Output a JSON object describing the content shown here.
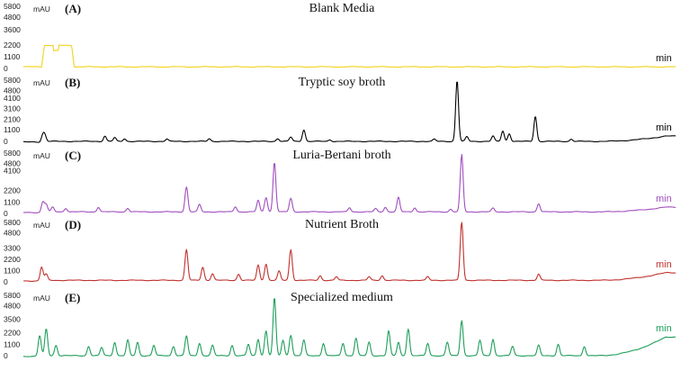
{
  "chart_data": {
    "type": "line",
    "y_ticks": [
      0,
      1100,
      2200,
      3300,
      4800,
      5800
    ],
    "ylim": [
      0,
      5800
    ],
    "panels": [
      {
        "label": "(A)",
        "title": "Blank Media",
        "y_unit": "mAU",
        "x_unit": "min",
        "y_ticks": [
          0,
          1100,
          2200,
          3600,
          4800,
          5800
        ],
        "color": "#f2d21a",
        "baseline": 150,
        "end_level": 150,
        "peaks": [],
        "plateau": [
          {
            "x": 0.028,
            "x2": 0.078,
            "h": 2000
          }
        ]
      },
      {
        "label": "(B)",
        "title": "Tryptic soy broth",
        "y_unit": "mAU",
        "x_unit": "min",
        "y_ticks": [
          0,
          1100,
          2100,
          3100,
          4100,
          4800,
          5800
        ],
        "color": "#000000",
        "baseline": 0,
        "end_level": 500,
        "peaks": [
          {
            "x": 0.03,
            "h": 600
          },
          {
            "x": 0.033,
            "h": 500
          },
          {
            "x": 0.125,
            "h": 500
          },
          {
            "x": 0.14,
            "h": 350
          },
          {
            "x": 0.155,
            "h": 250
          },
          {
            "x": 0.22,
            "h": 220
          },
          {
            "x": 0.285,
            "h": 250
          },
          {
            "x": 0.39,
            "h": 260
          },
          {
            "x": 0.41,
            "h": 400
          },
          {
            "x": 0.43,
            "h": 1100
          },
          {
            "x": 0.47,
            "h": 150
          },
          {
            "x": 0.63,
            "h": 200
          },
          {
            "x": 0.665,
            "h": 5800
          },
          {
            "x": 0.68,
            "h": 450
          },
          {
            "x": 0.72,
            "h": 500
          },
          {
            "x": 0.735,
            "h": 1000
          },
          {
            "x": 0.745,
            "h": 750
          },
          {
            "x": 0.785,
            "h": 2400
          },
          {
            "x": 0.84,
            "h": 220
          }
        ]
      },
      {
        "label": "(C)",
        "title": "Luria-Bertani broth",
        "y_unit": "mAU",
        "x_unit": "min",
        "y_ticks": [
          0,
          1100,
          2200,
          4100,
          4800,
          5800
        ],
        "color": "#a14fbf",
        "baseline": 150,
        "end_level": 600,
        "peaks": [
          {
            "x": 0.03,
            "h": 950
          },
          {
            "x": 0.035,
            "h": 700
          },
          {
            "x": 0.045,
            "h": 450
          },
          {
            "x": 0.065,
            "h": 350
          },
          {
            "x": 0.115,
            "h": 450
          },
          {
            "x": 0.16,
            "h": 350
          },
          {
            "x": 0.25,
            "h": 2400
          },
          {
            "x": 0.27,
            "h": 700
          },
          {
            "x": 0.325,
            "h": 500
          },
          {
            "x": 0.36,
            "h": 1100
          },
          {
            "x": 0.372,
            "h": 1400
          },
          {
            "x": 0.385,
            "h": 4800
          },
          {
            "x": 0.41,
            "h": 1300
          },
          {
            "x": 0.5,
            "h": 400
          },
          {
            "x": 0.54,
            "h": 300
          },
          {
            "x": 0.555,
            "h": 450
          },
          {
            "x": 0.575,
            "h": 1400
          },
          {
            "x": 0.6,
            "h": 400
          },
          {
            "x": 0.655,
            "h": 250
          },
          {
            "x": 0.672,
            "h": 5500
          },
          {
            "x": 0.72,
            "h": 350
          },
          {
            "x": 0.79,
            "h": 800
          }
        ]
      },
      {
        "label": "(D)",
        "title": "Nutrient Broth",
        "y_unit": "mAU",
        "x_unit": "min",
        "y_ticks": [
          0,
          1100,
          2200,
          3300,
          4800,
          5800
        ],
        "color": "#c0322e",
        "baseline": 150,
        "end_level": 900,
        "peaks": [
          {
            "x": 0.028,
            "h": 1300
          },
          {
            "x": 0.035,
            "h": 600
          },
          {
            "x": 0.25,
            "h": 3000
          },
          {
            "x": 0.275,
            "h": 1300
          },
          {
            "x": 0.29,
            "h": 650
          },
          {
            "x": 0.33,
            "h": 600
          },
          {
            "x": 0.36,
            "h": 1500
          },
          {
            "x": 0.372,
            "h": 1600
          },
          {
            "x": 0.392,
            "h": 900
          },
          {
            "x": 0.41,
            "h": 3000
          },
          {
            "x": 0.455,
            "h": 450
          },
          {
            "x": 0.48,
            "h": 350
          },
          {
            "x": 0.53,
            "h": 350
          },
          {
            "x": 0.55,
            "h": 450
          },
          {
            "x": 0.62,
            "h": 350
          },
          {
            "x": 0.672,
            "h": 5800
          },
          {
            "x": 0.79,
            "h": 600
          }
        ]
      },
      {
        "label": "(E)",
        "title": "Specialized medium",
        "y_unit": "mAU",
        "x_unit": "min",
        "y_ticks": [
          0,
          1100,
          2200,
          3500,
          4800,
          5800
        ],
        "color": "#1f9e5a",
        "baseline": 0,
        "end_level": 1800,
        "peaks": [
          {
            "x": 0.025,
            "h": 2000
          },
          {
            "x": 0.035,
            "h": 2600
          },
          {
            "x": 0.05,
            "h": 1000
          },
          {
            "x": 0.1,
            "h": 900
          },
          {
            "x": 0.12,
            "h": 800
          },
          {
            "x": 0.14,
            "h": 1300
          },
          {
            "x": 0.16,
            "h": 1500
          },
          {
            "x": 0.175,
            "h": 1300
          },
          {
            "x": 0.2,
            "h": 1000
          },
          {
            "x": 0.23,
            "h": 900
          },
          {
            "x": 0.25,
            "h": 1900
          },
          {
            "x": 0.27,
            "h": 1200
          },
          {
            "x": 0.29,
            "h": 1000
          },
          {
            "x": 0.32,
            "h": 1000
          },
          {
            "x": 0.345,
            "h": 1100
          },
          {
            "x": 0.36,
            "h": 1600
          },
          {
            "x": 0.372,
            "h": 2400
          },
          {
            "x": 0.385,
            "h": 5600
          },
          {
            "x": 0.398,
            "h": 1500
          },
          {
            "x": 0.41,
            "h": 2000
          },
          {
            "x": 0.43,
            "h": 1500
          },
          {
            "x": 0.46,
            "h": 1200
          },
          {
            "x": 0.49,
            "h": 1200
          },
          {
            "x": 0.51,
            "h": 1700
          },
          {
            "x": 0.53,
            "h": 1300
          },
          {
            "x": 0.56,
            "h": 2400
          },
          {
            "x": 0.575,
            "h": 1300
          },
          {
            "x": 0.59,
            "h": 2600
          },
          {
            "x": 0.62,
            "h": 1200
          },
          {
            "x": 0.65,
            "h": 1300
          },
          {
            "x": 0.672,
            "h": 3400
          },
          {
            "x": 0.7,
            "h": 1500
          },
          {
            "x": 0.72,
            "h": 1600
          },
          {
            "x": 0.75,
            "h": 900
          },
          {
            "x": 0.79,
            "h": 1000
          },
          {
            "x": 0.82,
            "h": 1100
          },
          {
            "x": 0.86,
            "h": 900
          }
        ]
      }
    ]
  }
}
